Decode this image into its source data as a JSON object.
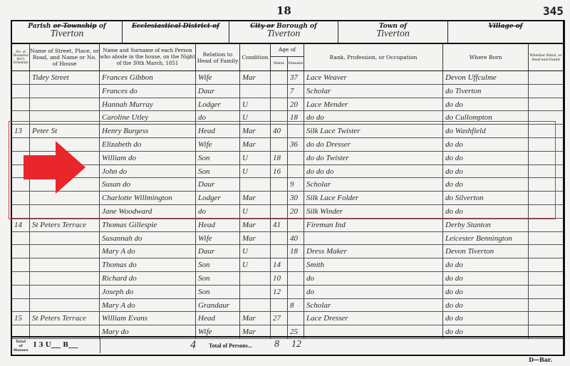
{
  "page": {
    "number": "18",
    "folio": "345",
    "form_mark": "D—Bar."
  },
  "header": {
    "parish_label_a": "Parish",
    "parish_label_struck": "or Township",
    "parish_label_b": "of",
    "parish_value": "Tiverton",
    "eccl_label": "Ecclesiastical District of",
    "borough_label_struck": "City or",
    "borough_label": "Borough of",
    "borough_value": "Tiverton",
    "town_label": "Town of",
    "town_value": "Tiverton",
    "village_label": "Village of"
  },
  "columns": {
    "schedule": "No. of Householder's Schedule",
    "street": "Name of Street, Place, or Road, and Name or No. of House",
    "name": "Name and Surname of each Person who abode in the house, on the Night of the 30th March, 1851",
    "relation": "Relation to Head of Family",
    "condition": "Condition",
    "age": "Age of",
    "males": "Males",
    "females": "Females",
    "occupation": "Rank, Profession, or Occupation",
    "born": "Where Born",
    "blind": "Whether Blind, or Deaf-and-Dumb"
  },
  "rows": [
    {
      "sched": "",
      "street": "Tidey Street",
      "name": "Frances Gibbon",
      "rel": "Wife",
      "cond": "Mar",
      "m": "",
      "f": "37",
      "occ": "Lace Weaver",
      "born": "Devon Uffculme"
    },
    {
      "sched": "",
      "street": "",
      "name": "Frances do",
      "rel": "Daur",
      "cond": "",
      "m": "",
      "f": "7",
      "occ": "Scholar",
      "born": "do Tiverton"
    },
    {
      "sched": "",
      "street": "",
      "name": "Hannah Murray",
      "rel": "Lodger",
      "cond": "U",
      "m": "",
      "f": "20",
      "occ": "Lace Mender",
      "born": "do do"
    },
    {
      "sched": "",
      "street": "",
      "name": "Caroline Utley",
      "rel": "do",
      "cond": "U",
      "m": "",
      "f": "18",
      "occ": "do do",
      "born": "do Cullompton"
    },
    {
      "sched": "13",
      "street": "Peter St",
      "name": "Henry Burgess",
      "rel": "Head",
      "cond": "Mar",
      "m": "40",
      "f": "",
      "occ": "Silk Lace Twister",
      "born": "do Washfield"
    },
    {
      "sched": "",
      "street": "",
      "name": "Elizabeth do",
      "rel": "Wife",
      "cond": "Mar",
      "m": "",
      "f": "36",
      "occ": "do do Dresser",
      "born": "do do"
    },
    {
      "sched": "",
      "street": "",
      "name": "William do",
      "rel": "Son",
      "cond": "U",
      "m": "18",
      "f": "",
      "occ": "do do Twister",
      "born": "do do"
    },
    {
      "sched": "",
      "street": "",
      "name": "John do",
      "rel": "Son",
      "cond": "U",
      "m": "16",
      "f": "",
      "occ": "do do do",
      "born": "do do"
    },
    {
      "sched": "",
      "street": "",
      "name": "Susan do",
      "rel": "Daur",
      "cond": "",
      "m": "",
      "f": "9",
      "occ": "Scholar",
      "born": "do do"
    },
    {
      "sched": "",
      "street": "",
      "name": "Charlotte Willmington",
      "rel": "Lodger",
      "cond": "Mar",
      "m": "",
      "f": "30",
      "occ": "Silk Lace Folder",
      "born": "do Silverton"
    },
    {
      "sched": "",
      "street": "",
      "name": "Jane Woodward",
      "rel": "do",
      "cond": "U",
      "m": "",
      "f": "20",
      "occ": "Silk Winder",
      "born": "do do"
    },
    {
      "sched": "14",
      "street": "St Peters Terrace",
      "name": "Thomas Gillespie",
      "rel": "Head",
      "cond": "Mar",
      "m": "41",
      "f": "",
      "occ": "Fireman Ind",
      "born": "Derby Stanton"
    },
    {
      "sched": "",
      "street": "",
      "name": "Susannah do",
      "rel": "Wife",
      "cond": "Mar",
      "m": "",
      "f": "40",
      "occ": "",
      "born": "Leicester Bennington"
    },
    {
      "sched": "",
      "street": "",
      "name": "Mary A do",
      "rel": "Daur",
      "cond": "U",
      "m": "",
      "f": "18",
      "occ": "Dress Maker",
      "born": "Devon Tiverton"
    },
    {
      "sched": "",
      "street": "",
      "name": "Thomas do",
      "rel": "Son",
      "cond": "U",
      "m": "14",
      "f": "",
      "occ": "Smith",
      "born": "do do"
    },
    {
      "sched": "",
      "street": "",
      "name": "Richard do",
      "rel": "Son",
      "cond": "",
      "m": "10",
      "f": "",
      "occ": "do",
      "born": "do do"
    },
    {
      "sched": "",
      "street": "",
      "name": "Joseph do",
      "rel": "Son",
      "cond": "",
      "m": "12",
      "f": "",
      "occ": "do",
      "born": "do do"
    },
    {
      "sched": "",
      "street": "",
      "name": "Mary A do",
      "rel": "Grandaur",
      "cond": "",
      "m": "",
      "f": "8",
      "occ": "Scholar",
      "born": "do do"
    },
    {
      "sched": "15",
      "street": "St Peters Terrace",
      "name": "William Evans",
      "rel": "Head",
      "cond": "Mar",
      "m": "27",
      "f": "",
      "occ": "Lace Dresser",
      "born": "do do"
    },
    {
      "sched": "",
      "street": "",
      "name": "Mary do",
      "rel": "Wife",
      "cond": "Mar",
      "m": "",
      "f": "25",
      "occ": "",
      "born": "do do"
    }
  ],
  "totals": {
    "houses_label": "Total of Houses",
    "houses_value": "I 3 U___ B___",
    "schedules_count": "4",
    "persons_label": "Total of Persons...",
    "males": "8",
    "females": "12"
  },
  "annotation": {
    "highlight_color": "#d6333a",
    "arrow_color": "#e8262b",
    "arrow_icon": "arrow-right-icon"
  }
}
